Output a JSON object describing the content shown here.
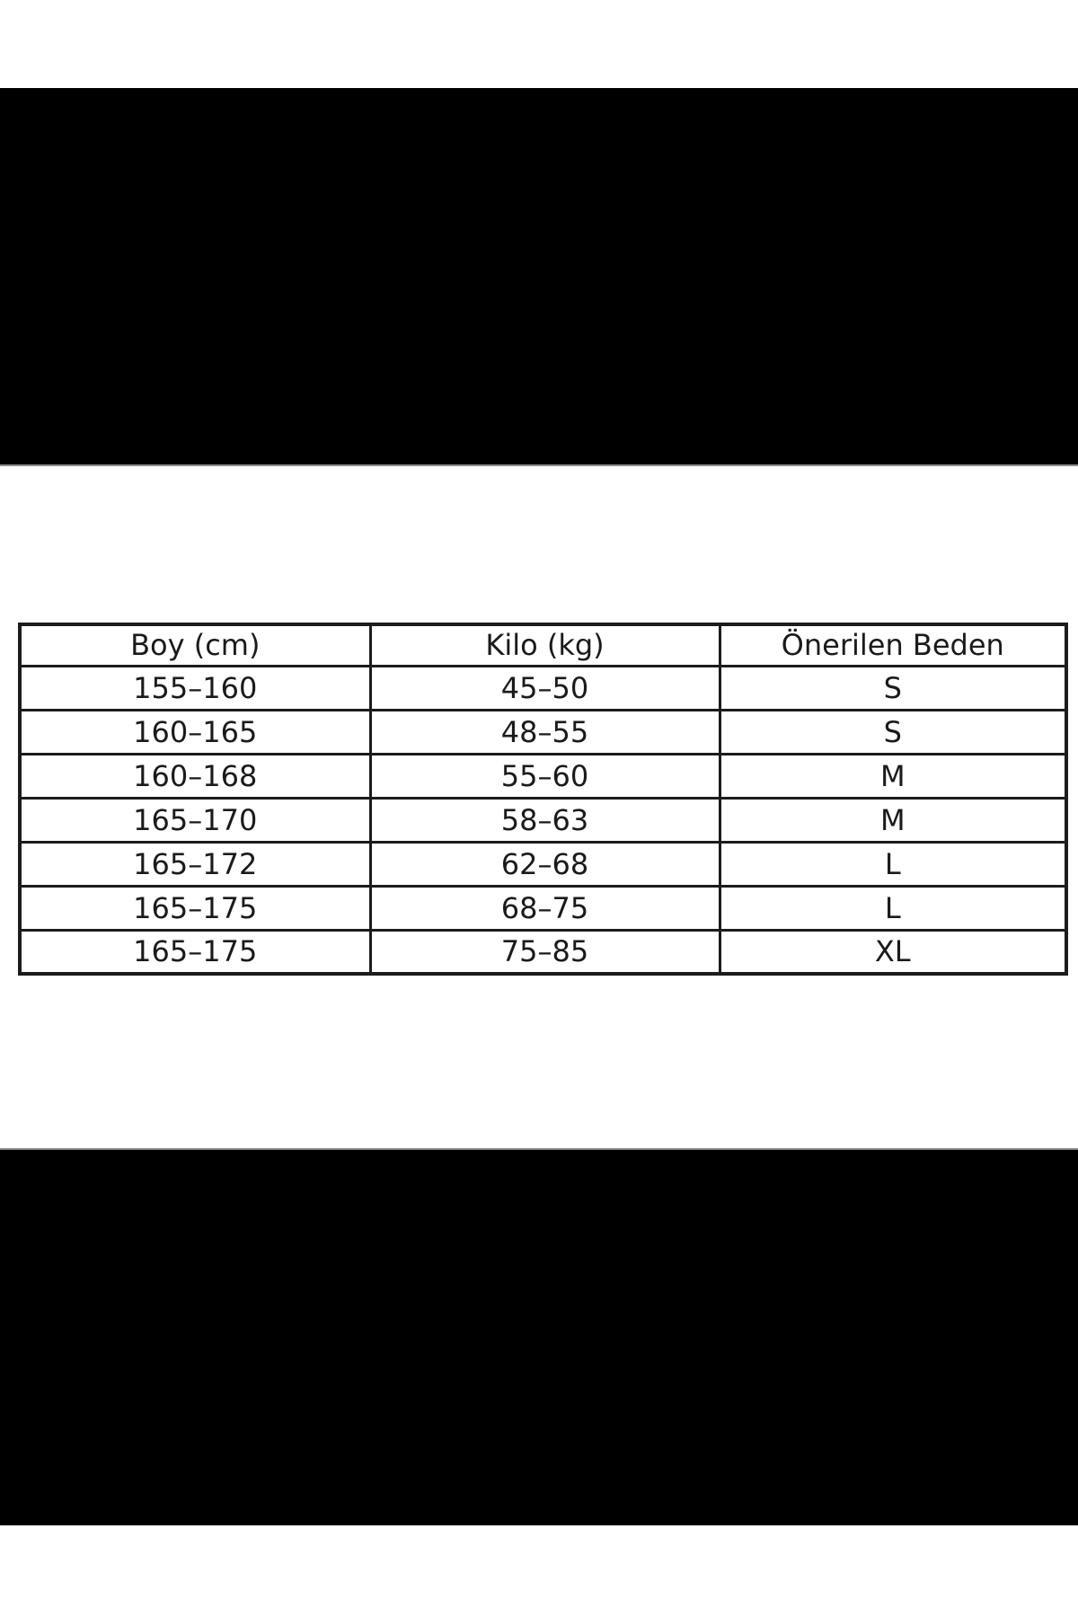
{
  "size_chart": {
    "columns": [
      "Boy (cm)",
      "Kilo (kg)",
      "Önerilen Beden"
    ],
    "rows": [
      [
        "155–160",
        "45–50",
        "S"
      ],
      [
        "160–165",
        "48–55",
        "S"
      ],
      [
        "160–168",
        "55–60",
        "M"
      ],
      [
        "165–170",
        "58–63",
        "M"
      ],
      [
        "165–172",
        "62–68",
        "L"
      ],
      [
        "165–175",
        "68–75",
        "L"
      ],
      [
        "165–175",
        "75–85",
        "XL"
      ]
    ]
  },
  "colors": {
    "page_background": "#ffffff",
    "letterbox_bar": "#000000",
    "table_border": "#1c1c1c",
    "table_text": "#1a1a1a",
    "bar_seam_line": "#8f8f8f"
  }
}
